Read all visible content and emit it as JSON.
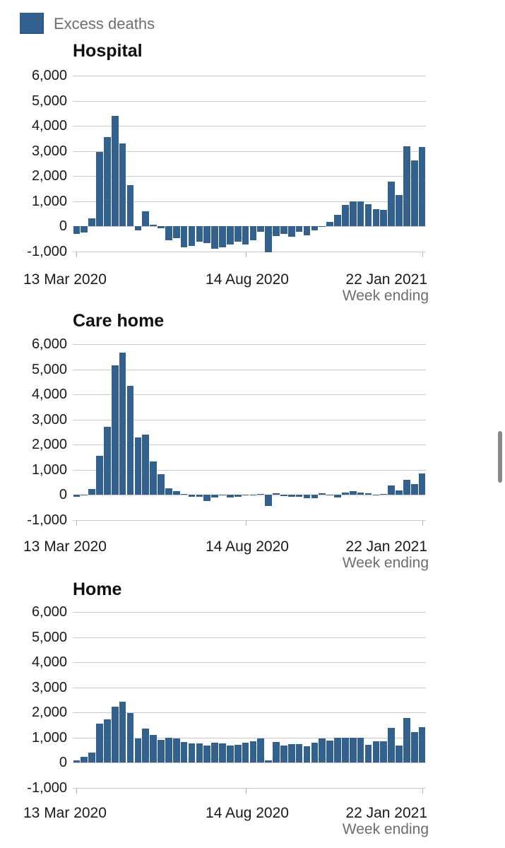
{
  "legend": {
    "label": "Excess deaths"
  },
  "colors": {
    "bar": "#33618f",
    "bar_border": "#2a5580",
    "grid": "#cbcbcb",
    "axis_text": "#1a1a1a",
    "muted_text": "#6e6e6e",
    "tick": "#b5b5b5",
    "scrollbar": "#8a8a8a"
  },
  "chart_data": [
    {
      "type": "bar",
      "title": "Hospital",
      "xlabel": "Week ending",
      "ylabel": "",
      "ylim": [
        -1000,
        6000
      ],
      "grid": true,
      "n_weeks": 46,
      "y_tick_labels": [
        "6,000",
        "5,000",
        "4,000",
        "3,000",
        "2,000",
        "1,000",
        "0",
        "-1,000"
      ],
      "x_tick_labels": [
        "13 Mar 2020",
        "14 Aug 2020",
        "22 Jan 2021"
      ],
      "x_tick_indices": [
        0,
        22,
        45
      ],
      "series": [
        {
          "name": "Excess deaths",
          "values": [
            -300,
            -250,
            330,
            2950,
            3550,
            4400,
            3300,
            1650,
            -160,
            610,
            70,
            -60,
            -540,
            -470,
            -820,
            -780,
            -610,
            -670,
            -880,
            -820,
            -710,
            -600,
            -710,
            -540,
            -220,
            -1040,
            -370,
            -310,
            -420,
            -220,
            -350,
            -170,
            -30,
            190,
            450,
            850,
            990,
            990,
            890,
            680,
            660,
            1780,
            1250,
            3200,
            2620,
            3150
          ]
        }
      ]
    },
    {
      "type": "bar",
      "title": "Care home",
      "xlabel": "Week ending",
      "ylabel": "",
      "ylim": [
        -1000,
        6000
      ],
      "grid": true,
      "n_weeks": 46,
      "y_tick_labels": [
        "6,000",
        "5,000",
        "4,000",
        "3,000",
        "2,000",
        "1,000",
        "0",
        "-1,000"
      ],
      "x_tick_labels": [
        "13 Mar 2020",
        "14 Aug 2020",
        "22 Jan 2021"
      ],
      "x_tick_indices": [
        0,
        22,
        45
      ],
      "series": [
        {
          "name": "Excess deaths",
          "values": [
            -60,
            10,
            250,
            1550,
            2700,
            5150,
            5650,
            4350,
            2280,
            2400,
            1330,
            820,
            260,
            150,
            40,
            -70,
            -70,
            -250,
            -110,
            -30,
            -110,
            -60,
            -20,
            20,
            30,
            -430,
            60,
            -50,
            -60,
            -60,
            -130,
            -130,
            60,
            -10,
            -90,
            90,
            140,
            110,
            60,
            -10,
            30,
            390,
            180,
            600,
            420,
            850
          ]
        }
      ]
    },
    {
      "type": "bar",
      "title": "Home",
      "xlabel": "Week ending",
      "ylabel": "",
      "ylim": [
        -1000,
        6000
      ],
      "grid": true,
      "n_weeks": 46,
      "y_tick_labels": [
        "6,000",
        "5,000",
        "4,000",
        "3,000",
        "2,000",
        "1,000",
        "0",
        "-1,000"
      ],
      "x_tick_labels": [
        "13 Mar 2020",
        "14 Aug 2020",
        "22 Jan 2021"
      ],
      "x_tick_indices": [
        0,
        22,
        45
      ],
      "series": [
        {
          "name": "Excess deaths",
          "values": [
            100,
            240,
            400,
            1550,
            1720,
            2230,
            2420,
            1980,
            980,
            1370,
            1100,
            900,
            1010,
            970,
            840,
            760,
            770,
            700,
            810,
            760,
            700,
            710,
            810,
            860,
            960,
            100,
            840,
            680,
            730,
            730,
            660,
            790,
            970,
            890,
            1010,
            1010,
            1010,
            1010,
            710,
            855,
            855,
            1380,
            690,
            1790,
            1220,
            1430
          ]
        }
      ]
    }
  ]
}
